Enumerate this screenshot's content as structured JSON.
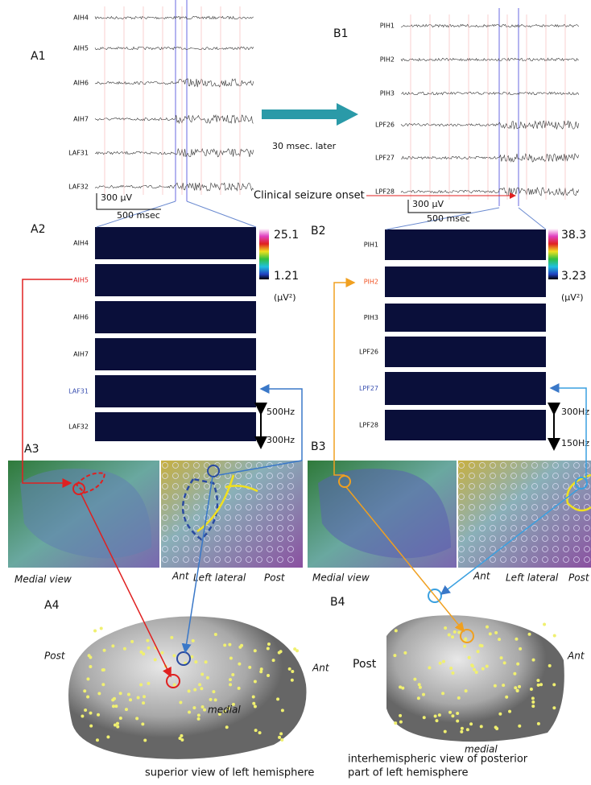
{
  "panel_a1": {
    "label": "A1",
    "channels": [
      "AIH4",
      "AIH5",
      "AIH6",
      "AIH7",
      "LAF31",
      "LAF32"
    ],
    "scale_amplitude": "300 µV",
    "scale_time": "500 msec"
  },
  "panel_b1": {
    "label": "B1",
    "channels": [
      "PIH1",
      "PIH2",
      "PIH3",
      "LPF26",
      "LPF27",
      "LPF28"
    ],
    "scale_amplitude": "300 µV",
    "scale_time": "500 msec"
  },
  "transition": {
    "delay": "30 msec. later",
    "seizure_onset": "Clinical seizure onset"
  },
  "panel_a2": {
    "label": "A2",
    "channels": [
      "AIH4",
      "AIH5",
      "AIH6",
      "AIH7",
      "LAF31",
      "LAF32"
    ],
    "colorbar_max": 25.1,
    "colorbar_min": 1.21,
    "colorbar_unit": "(µV²)",
    "freq_high": "500Hz",
    "freq_low": "300Hz"
  },
  "panel_b2": {
    "label": "B2",
    "channels": [
      "PIH1",
      "PIH2",
      "PIH3",
      "LPF26",
      "LPF27",
      "LPF28"
    ],
    "colorbar_max": 38.3,
    "colorbar_min": 3.23,
    "colorbar_unit": "(µV²)",
    "freq_high": "300Hz",
    "freq_low": "150Hz"
  },
  "panel_a3": {
    "label": "A3",
    "medial_view": "Medial view",
    "ant": "Ant",
    "lateral_view": "Left lateral",
    "post": "Post"
  },
  "panel_b3": {
    "label": "B3",
    "medial_view": "Medial view",
    "ant": "Ant",
    "lateral_view": "Left lateral",
    "post": "Post"
  },
  "panel_a4": {
    "label": "A4",
    "post": "Post",
    "ant": "Ant",
    "medial": "medial",
    "caption": "superior view of left hemisphere"
  },
  "panel_b4": {
    "label": "B4",
    "post": "Post",
    "ant": "Ant",
    "medial": "medial",
    "caption": [
      "interhemispheric view of posterior",
      "part of left hemisphere"
    ]
  }
}
